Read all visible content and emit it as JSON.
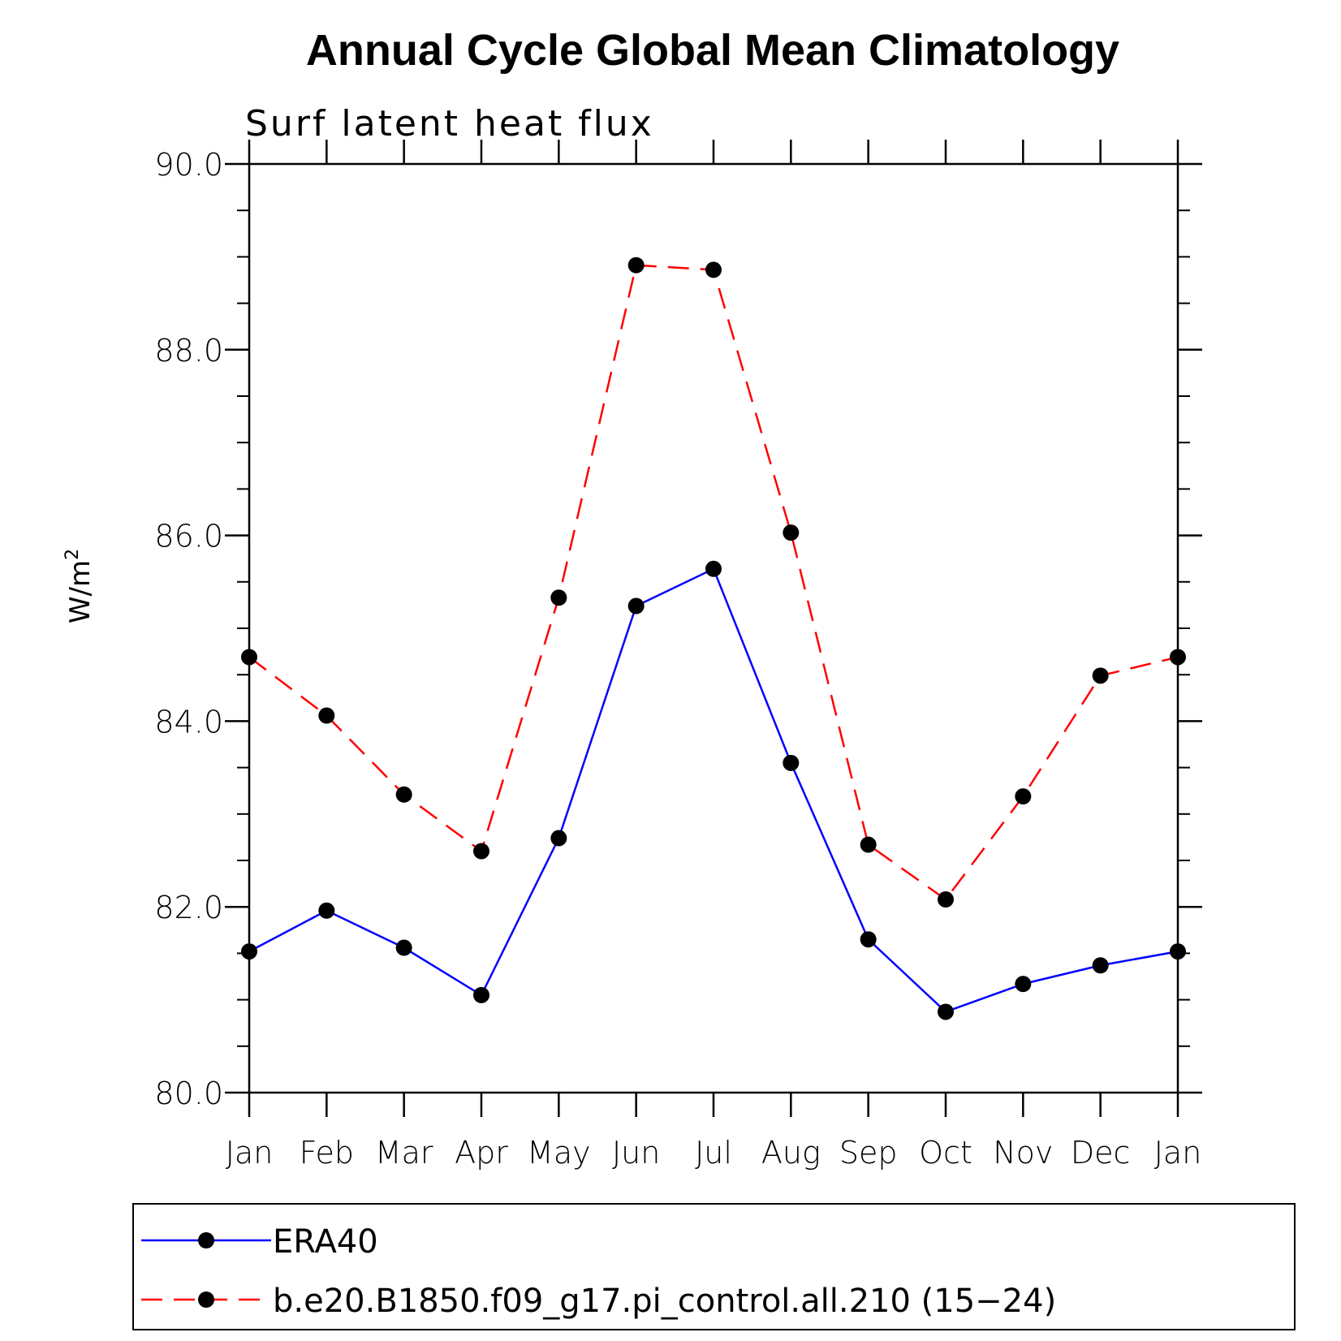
{
  "chart_data": {
    "type": "line",
    "title": "Annual Cycle Global Mean Climatology",
    "subtitle": "Surf latent heat flux",
    "xlabel": "",
    "ylabel": "W/m",
    "ylabel_superscript": "2",
    "categories": [
      "Jan",
      "Feb",
      "Mar",
      "Apr",
      "May",
      "Jun",
      "Jul",
      "Aug",
      "Sep",
      "Oct",
      "Nov",
      "Dec",
      "Jan"
    ],
    "ylim": [
      80.0,
      90.0
    ],
    "yticks": [
      80.0,
      82.0,
      84.0,
      86.0,
      88.0,
      90.0
    ],
    "ytick_labels": [
      "80.0",
      "82.0",
      "84.0",
      "86.0",
      "88.0",
      "90.0"
    ],
    "series": [
      {
        "name": "ERA40",
        "color": "#0000ff",
        "dash": "solid",
        "marker": "filled-circle",
        "values": [
          81.52,
          81.96,
          81.56,
          81.05,
          82.74,
          85.24,
          85.64,
          83.55,
          81.65,
          80.87,
          81.17,
          81.37,
          81.52
        ]
      },
      {
        "name": "b.e20.B1850.f09_g17.pi_control.all.210 (15−24)",
        "color": "#ff0000",
        "dash": "dashed",
        "marker": "filled-circle",
        "values": [
          84.69,
          84.06,
          83.21,
          82.6,
          85.33,
          88.91,
          88.86,
          86.03,
          82.67,
          82.08,
          83.19,
          84.49,
          84.69
        ]
      }
    ],
    "legend_position": "bottom"
  }
}
